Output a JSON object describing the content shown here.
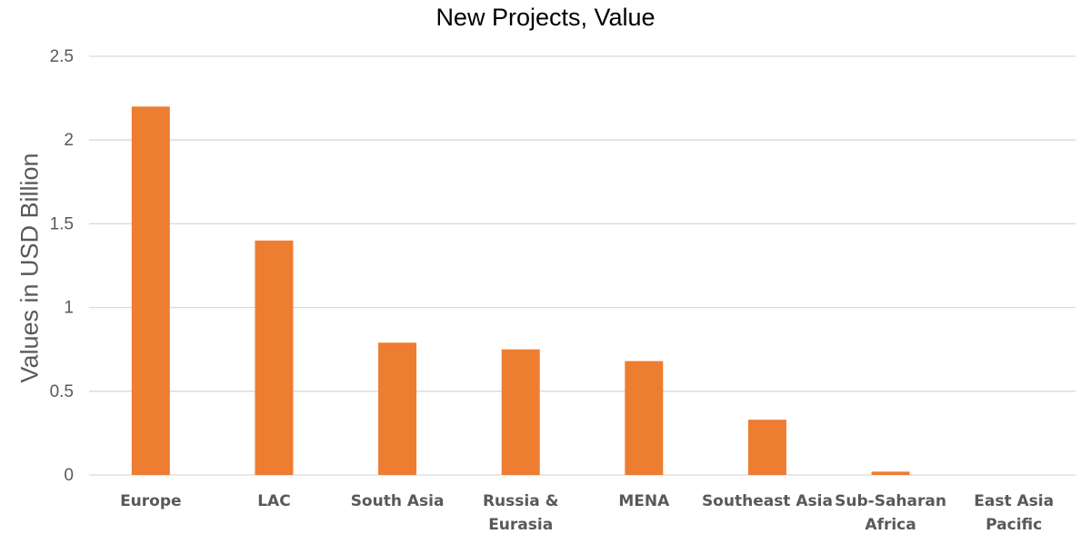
{
  "chart_data": {
    "type": "bar",
    "title": "New Projects, Value",
    "xlabel": "",
    "ylabel": "Values in USD Billion",
    "categories": [
      "Europe",
      "LAC",
      "South Asia",
      "Russia & Eurasia",
      "MENA",
      "Southeast Asia",
      "Sub-Saharan Africa",
      "East Asia Pacific"
    ],
    "category_lines": [
      [
        "Europe"
      ],
      [
        "LAC"
      ],
      [
        "South Asia"
      ],
      [
        "Russia &",
        "Eurasia"
      ],
      [
        "MENA"
      ],
      [
        "Southeast Asia"
      ],
      [
        "Sub-Saharan",
        "Africa"
      ],
      [
        "East Asia",
        "Pacific"
      ]
    ],
    "values": [
      2.2,
      1.4,
      0.79,
      0.75,
      0.68,
      0.33,
      0.02,
      0
    ],
    "ylim": [
      0,
      2.5
    ],
    "yticks": [
      "0",
      "0.5",
      "1",
      "1.5",
      "2",
      "2.5"
    ],
    "grid": true,
    "legend": "none",
    "bar_color": "#ED7D31",
    "grid_color": "#D9D9D9"
  }
}
